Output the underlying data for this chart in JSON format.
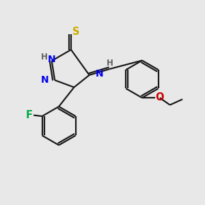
{
  "background_color": "#e8e8e8",
  "fig_width": 3.0,
  "fig_height": 3.0,
  "dpi": 100,
  "bond_color": "#1a1a1a",
  "N_color": "#0000ee",
  "S_color": "#ccaa00",
  "F_color": "#00aa44",
  "O_color": "#cc0000",
  "H_color": "#606060",
  "bond_lw": 1.6,
  "xlim": [
    0,
    10
  ],
  "ylim": [
    0,
    10
  ]
}
